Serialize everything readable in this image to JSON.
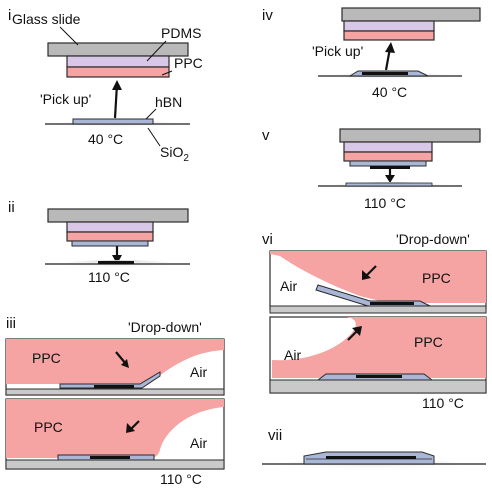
{
  "panels": {
    "i": {
      "roman": "i",
      "glass_slide": "Glass slide",
      "pdms": "PDMS",
      "ppc": "PPC",
      "pick_up": "'Pick up'",
      "hbn": "hBN",
      "temp": "40 °C",
      "sio2": "SiO",
      "sio2_sub": "2"
    },
    "ii": {
      "roman": "ii",
      "temp": "110 °C"
    },
    "iii": {
      "roman": "iii",
      "drop_down": "'Drop-down'",
      "ppc_top": "PPC",
      "air_top": "Air",
      "ppc_bottom": "PPC",
      "air_bottom": "Air",
      "temp": "110 °C"
    },
    "iv": {
      "roman": "iv",
      "pick_up": "'Pick up'",
      "temp": "40 °C"
    },
    "v": {
      "roman": "v",
      "temp": "110 °C"
    },
    "vi": {
      "roman": "vi",
      "drop_down": "'Drop-down'",
      "air_top": "Air",
      "ppc_top": "PPC",
      "air_bottom": "Air",
      "ppc_bottom": "PPC",
      "temp": "110 °C"
    },
    "vii": {
      "roman": "vii"
    }
  },
  "colors": {
    "glass": "#b9b9b9",
    "pdms": "#d9c7e8",
    "ppc": "#f5a3a3",
    "flake": "#a9b6d6",
    "substrate": "#c9c9c9",
    "outline": "#2b2b2b"
  }
}
